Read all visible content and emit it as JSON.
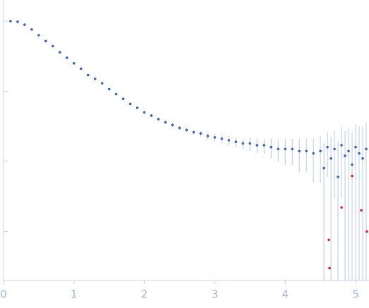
{
  "chart_data": {
    "type": "scatter",
    "log_y": true,
    "xlim": [
      0,
      5.18
    ],
    "xticks": [
      0,
      1,
      2,
      3,
      4,
      5
    ],
    "ylim": [
      0.0002,
      2
    ],
    "yticks": [
      1,
      0.1,
      0.01,
      0.001
    ],
    "series": [
      {
        "color": "#3a66b8",
        "error_color": "#b9c9e4",
        "x": [
          0.1,
          0.2,
          0.3,
          0.4,
          0.5,
          0.6,
          0.7,
          0.8,
          0.9,
          1.0,
          1.1,
          1.2,
          1.3,
          1.4,
          1.5,
          1.6,
          1.7,
          1.8,
          1.9,
          2.0,
          2.1,
          2.2,
          2.3,
          2.4,
          2.5,
          2.6,
          2.7,
          2.8,
          2.9,
          3.0,
          3.1,
          3.2,
          3.3,
          3.4,
          3.5,
          3.6,
          3.7,
          3.8,
          3.9,
          4.0,
          4.1,
          4.2,
          4.3,
          4.4,
          4.5,
          4.55,
          4.6,
          4.65,
          4.7,
          4.75,
          4.8,
          4.85,
          4.9,
          4.95,
          5.0,
          5.05,
          5.1,
          5.15
        ],
        "values": [
          1.0,
          0.98,
          0.89,
          0.76,
          0.63,
          0.52,
          0.44,
          0.36,
          0.3,
          0.25,
          0.21,
          0.17,
          0.15,
          0.13,
          0.107,
          0.091,
          0.078,
          0.066,
          0.058,
          0.05,
          0.045,
          0.04,
          0.036,
          0.033,
          0.03,
          0.028,
          0.026,
          0.025,
          0.023,
          0.022,
          0.021,
          0.02,
          0.019,
          0.018,
          0.018,
          0.017,
          0.017,
          0.016,
          0.015,
          0.015,
          0.015,
          0.014,
          0.014,
          0.013,
          0.014,
          0.008,
          0.016,
          0.011,
          0.015,
          0.006,
          0.017,
          0.012,
          0.014,
          0.009,
          0.016,
          0.013,
          0.011,
          0.015
        ],
        "errors": [
          0.005,
          0.005,
          0.005,
          0.004,
          0.004,
          0.003,
          0.003,
          0.003,
          0.003,
          0.003,
          0.002,
          0.002,
          0.002,
          0.002,
          0.002,
          0.002,
          0.002,
          0.002,
          0.002,
          0.002,
          0.002,
          0.002,
          0.002,
          0.002,
          0.002,
          0.002,
          0.002,
          0.002,
          0.002,
          0.003,
          0.003,
          0.003,
          0.003,
          0.003,
          0.004,
          0.004,
          0.004,
          0.005,
          0.005,
          0.006,
          0.006,
          0.007,
          0.007,
          0.008,
          0.009,
          0.01,
          0.01,
          0.011,
          0.012,
          0.013,
          0.014,
          0.015,
          0.016,
          0.017,
          0.018,
          0.019,
          0.02,
          0.021
        ]
      },
      {
        "color": "#d62728",
        "x": [
          4.62,
          4.63,
          4.8,
          4.95,
          5.08,
          5.16
        ],
        "values": [
          0.00076,
          0.0003,
          0.0022,
          0.0062,
          0.002,
          0.001
        ]
      }
    ]
  }
}
